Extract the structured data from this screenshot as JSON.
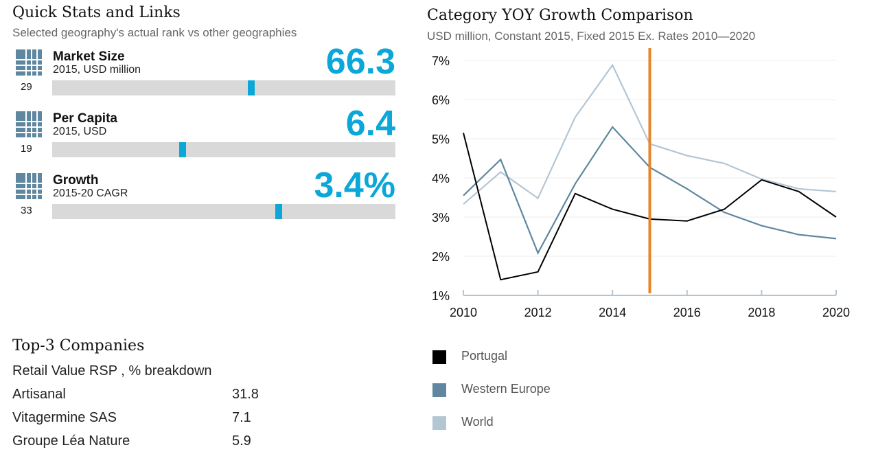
{
  "quick_stats": {
    "title": "Quick Stats and Links",
    "subtitle": "Selected geography's actual rank vs other geographies",
    "items": [
      {
        "title": "Market Size",
        "subtitle": "2015, USD million",
        "value": "66.3",
        "rank": "29",
        "position_pct": 58
      },
      {
        "title": "Per Capita",
        "subtitle": "2015, USD",
        "value": "6.4",
        "rank": "19",
        "position_pct": 38
      },
      {
        "title": "Growth",
        "subtitle": "2015-20 CAGR",
        "value": "3.4%",
        "rank": "33",
        "position_pct": 66
      }
    ],
    "icon": "grid-rank-icon",
    "accent": "#0aa7d8"
  },
  "companies": {
    "title": "Top-3 Companies",
    "subtitle": "Retail Value RSP , % breakdown",
    "rows": [
      {
        "name": "Artisanal",
        "value": "31.8"
      },
      {
        "name": "Vitagermine SAS",
        "value": "7.1"
      },
      {
        "name": "Groupe Léa Nature",
        "value": "5.9"
      }
    ]
  },
  "chart_data": {
    "type": "line",
    "title": "Category YOY Growth Comparison",
    "subtitle": "USD million, Constant 2015, Fixed 2015 Ex. Rates  2010—2020",
    "x": [
      2010,
      2011,
      2012,
      2013,
      2014,
      2015,
      2016,
      2017,
      2018,
      2019,
      2020
    ],
    "xticks": [
      "2010",
      "2012",
      "2014",
      "2016",
      "2018",
      "2020"
    ],
    "yticks": [
      "1%",
      "2%",
      "3%",
      "4%",
      "5%",
      "6%",
      "7%"
    ],
    "ylim": [
      1,
      7
    ],
    "grid": true,
    "reference_line_x": 2015,
    "reference_color": "#e8832a",
    "series": [
      {
        "name": "Portugal",
        "color": "#000000",
        "values": [
          5.15,
          1.4,
          1.6,
          3.6,
          3.2,
          2.95,
          2.9,
          3.2,
          3.95,
          3.65,
          3.0
        ]
      },
      {
        "name": "Western Europe",
        "color": "#5f87a0",
        "values": [
          3.55,
          4.47,
          2.08,
          3.85,
          5.3,
          4.27,
          3.72,
          3.12,
          2.78,
          2.55,
          2.45
        ]
      },
      {
        "name": "World",
        "color": "#b3c6d4",
        "values": [
          3.33,
          4.15,
          3.48,
          5.55,
          6.88,
          4.87,
          4.57,
          4.37,
          3.97,
          3.72,
          3.65
        ]
      }
    ],
    "legend_placement": "bottom-left"
  }
}
